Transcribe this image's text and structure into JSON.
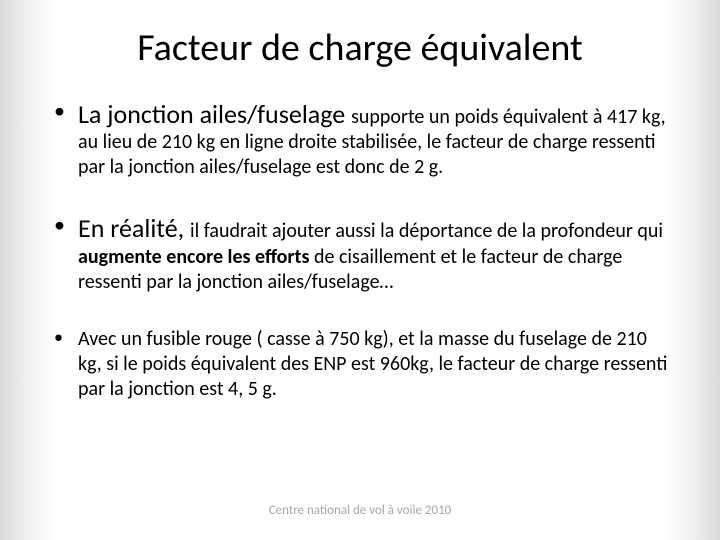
{
  "title": "Facteur de charge équivalent",
  "bullets": [
    {
      "lead": "La jonction ailes/fuselage ",
      "sub1": "supporte un poids équivalent à 417 kg, au lieu de 210 kg en ligne droite stabilisée, le facteur de charge ressenti par la jonction ailes/fuselage est donc de 2 g."
    },
    {
      "lead": "En réalité, ",
      "sub1": "il faudrait ajouter aussi la déportance de la profondeur qui ",
      "bold": "augmente encore les efforts ",
      "sub2": "de cisaillement et le facteur de charge ressenti par la jonction ailes/fuselage…"
    },
    {
      "text": "Avec un fusible rouge ( casse à 750 kg), et la masse du fuselage de 210 kg, si le poids équivalent des ENP est 960kg, le facteur de charge ressenti par la jonction est 4, 5 g."
    }
  ],
  "footer": "Centre national de vol à voile 2010",
  "colors": {
    "text": "#000000",
    "footer": "#a6a6a6",
    "bg_center": "#ffffff",
    "bg_edge": "#d9d9d9"
  },
  "fontsizes": {
    "title": 38,
    "lead": 26,
    "body": 20,
    "footer": 13
  }
}
